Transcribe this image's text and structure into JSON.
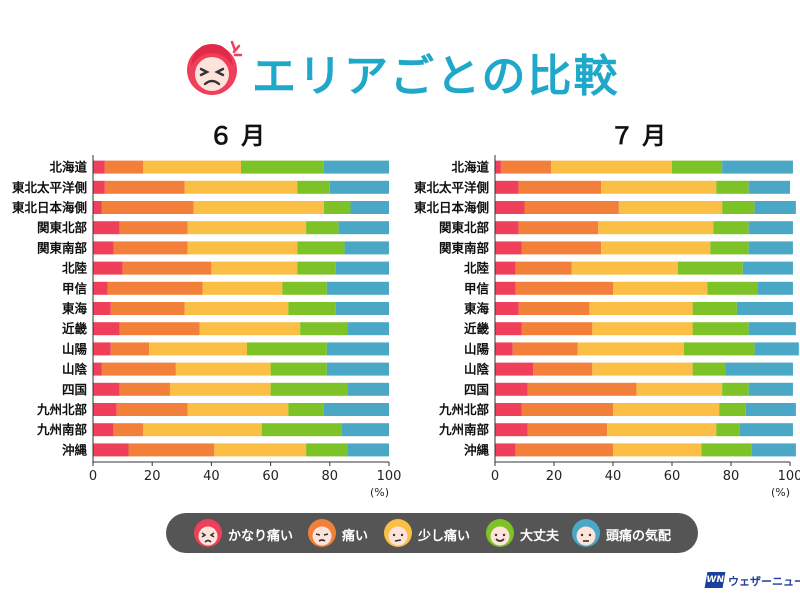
{
  "title": "エリアごとの比較",
  "colors": {
    "title": "#1fa8c9",
    "series": [
      "#ef3f5a",
      "#f2803a",
      "#fbbf45",
      "#7dc226",
      "#4aa8c6"
    ]
  },
  "legend": {
    "items": [
      {
        "label": "かなり痛い",
        "icon": "very-painful-face-icon"
      },
      {
        "label": "痛い",
        "icon": "painful-face-icon"
      },
      {
        "label": "少し痛い",
        "icon": "slightly-painful-face-icon"
      },
      {
        "label": "大丈夫",
        "icon": "fine-face-icon"
      },
      {
        "label": "頭痛の気配",
        "icon": "headache-sign-face-icon"
      }
    ]
  },
  "brand": {
    "text": "ウェザーニュース",
    "logo": "WN"
  },
  "chart_data": [
    {
      "type": "bar",
      "orientation": "horizontal",
      "stacked": true,
      "title": "６ 月",
      "unit_label": "(%)",
      "xlim": [
        0,
        100
      ],
      "xticks": [
        0,
        20,
        40,
        60,
        80,
        100
      ],
      "categories": [
        "北海道",
        "東北太平洋側",
        "東北日本海側",
        "関東北部",
        "関東南部",
        "北陸",
        "甲信",
        "東海",
        "近畿",
        "山陽",
        "山陰",
        "四国",
        "九州北部",
        "九州南部",
        "沖縄"
      ],
      "series": [
        {
          "name": "かなり痛い",
          "values": [
            4,
            4,
            3,
            9,
            7,
            10,
            5,
            6,
            9,
            6,
            3,
            9,
            8,
            7,
            12
          ]
        },
        {
          "name": "痛い",
          "values": [
            13,
            27,
            31,
            23,
            25,
            30,
            32,
            25,
            27,
            13,
            25,
            17,
            24,
            10,
            29
          ]
        },
        {
          "name": "少し痛い",
          "values": [
            33,
            38,
            44,
            40,
            37,
            29,
            27,
            35,
            34,
            33,
            32,
            34,
            34,
            40,
            31
          ]
        },
        {
          "name": "大丈夫",
          "values": [
            28,
            11,
            9,
            11,
            16,
            13,
            15,
            16,
            16,
            27,
            19,
            26,
            12,
            27,
            14
          ]
        },
        {
          "name": "頭痛の気配",
          "values": [
            22,
            20,
            13,
            17,
            15,
            18,
            21,
            18,
            14,
            21,
            21,
            14,
            22,
            16,
            14
          ]
        }
      ]
    },
    {
      "type": "bar",
      "orientation": "horizontal",
      "stacked": true,
      "title": "７ 月",
      "unit_label": "(%)",
      "xlim": [
        0,
        100
      ],
      "xticks": [
        0,
        20,
        40,
        60,
        80,
        100
      ],
      "categories": [
        "北海道",
        "東北太平洋側",
        "東北日本海側",
        "関東北部",
        "関東南部",
        "北陸",
        "甲信",
        "東海",
        "近畿",
        "山陽",
        "山陰",
        "四国",
        "九州北部",
        "九州南部",
        "沖縄"
      ],
      "series": [
        {
          "name": "かなり痛い",
          "values": [
            2,
            8,
            10,
            8,
            9,
            7,
            7,
            8,
            9,
            6,
            13,
            11,
            9,
            11,
            7
          ]
        },
        {
          "name": "痛い",
          "values": [
            17,
            28,
            32,
            27,
            27,
            19,
            33,
            24,
            24,
            22,
            20,
            37,
            31,
            27,
            33
          ]
        },
        {
          "name": "少し痛い",
          "values": [
            41,
            39,
            35,
            39,
            37,
            36,
            32,
            35,
            34,
            36,
            34,
            29,
            36,
            37,
            30
          ]
        },
        {
          "name": "大丈夫",
          "values": [
            17,
            11,
            11,
            12,
            13,
            22,
            17,
            15,
            19,
            24,
            11,
            9,
            9,
            8,
            17
          ]
        },
        {
          "name": "頭痛の気配",
          "values": [
            24,
            14,
            14,
            15,
            15,
            17,
            12,
            19,
            16,
            15,
            23,
            15,
            17,
            18,
            15
          ]
        }
      ]
    }
  ]
}
